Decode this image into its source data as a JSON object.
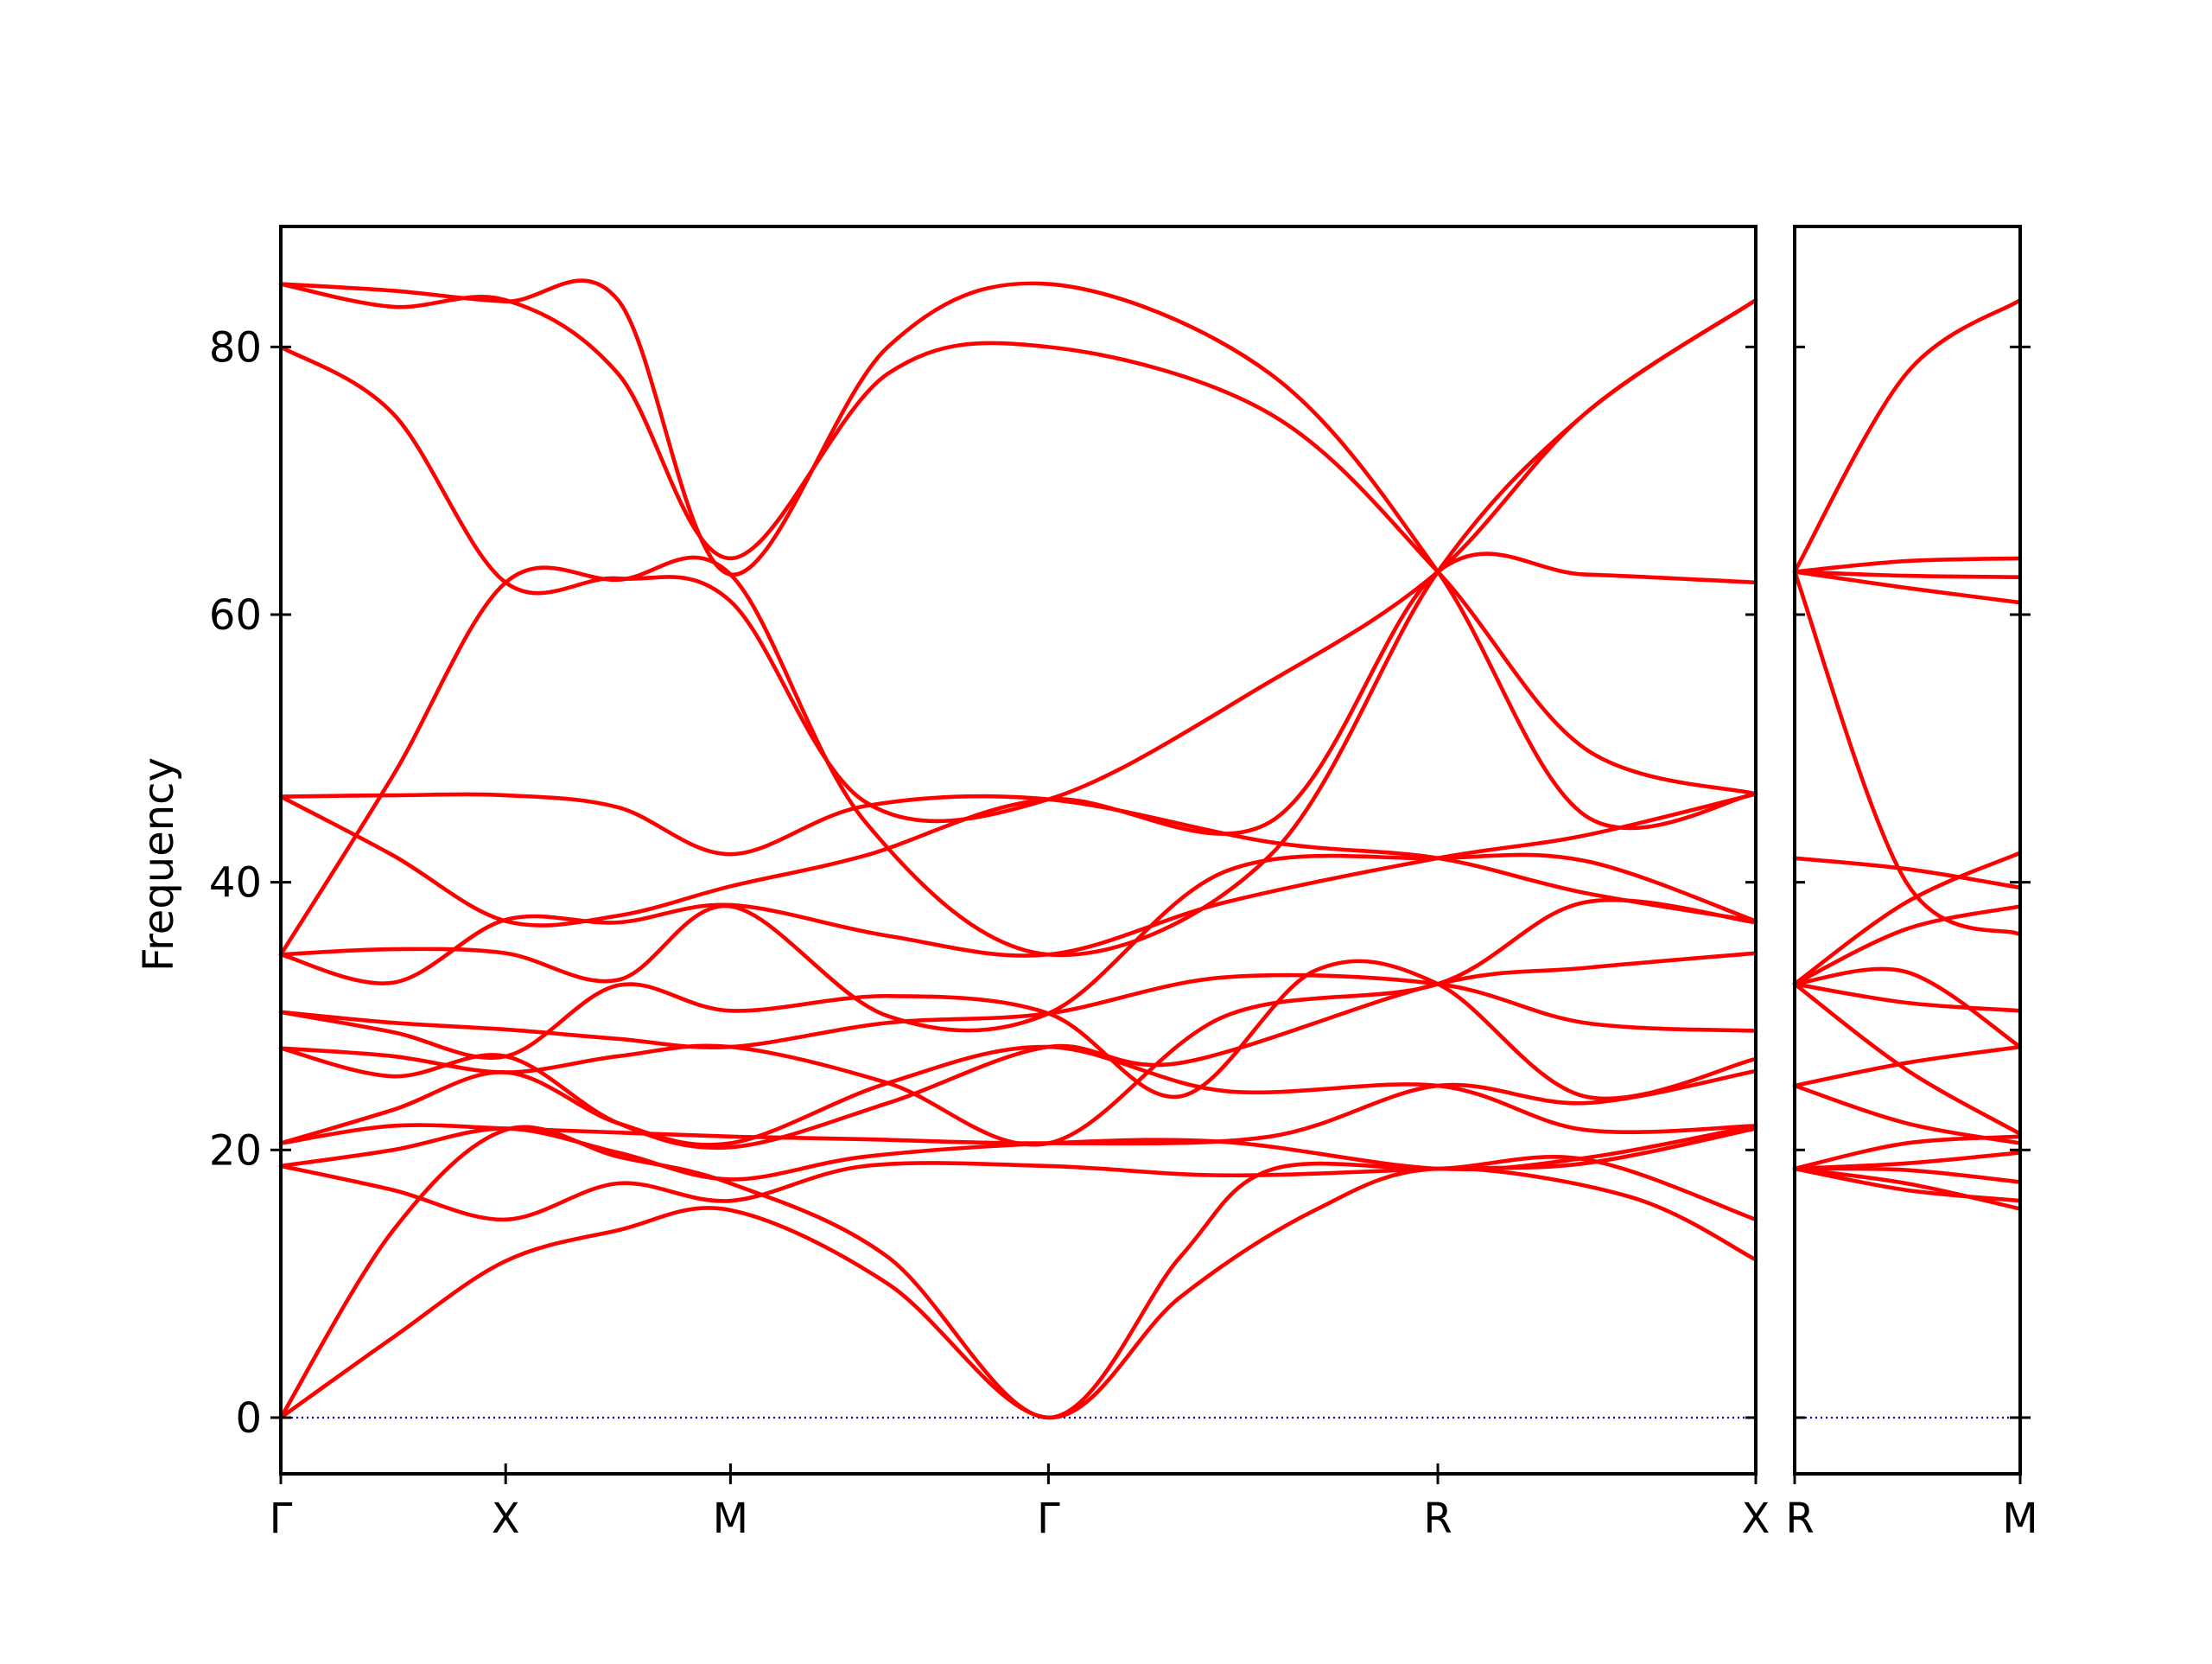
{
  "chart_data": {
    "type": "line",
    "ylabel": "Frequency",
    "ylim": [
      -4.2,
      89
    ],
    "yticks": [
      0,
      20,
      40,
      60,
      80
    ],
    "ytick_labels": [
      "0",
      "20",
      "40",
      "60",
      "80"
    ],
    "grid": false,
    "band_color": "#ff0000",
    "zero_line_color": "#0000cc",
    "zero_line_style": "dotted",
    "panels": [
      {
        "path_labels": [
          "Γ",
          "X",
          "M",
          "Γ",
          "R",
          "X"
        ],
        "path_positions": [
          0,
          0.5,
          1.0,
          1.7071,
          2.5731,
          3.2802
        ],
        "bands": [
          [
            [
              0,
              0
            ],
            [
              0.25,
              6
            ],
            [
              0.5,
              11.7
            ],
            [
              0.75,
              14
            ],
            [
              1.0,
              15.5
            ],
            [
              1.35,
              10
            ],
            [
              1.7071,
              0
            ],
            [
              2.0,
              9
            ],
            [
              2.3,
              15.5
            ],
            [
              2.5731,
              18.6
            ],
            [
              3.0,
              16.5
            ],
            [
              3.2802,
              11.8
            ]
          ],
          [
            [
              0,
              0
            ],
            [
              0.25,
              14
            ],
            [
              0.5,
              21.5
            ],
            [
              0.75,
              19.5
            ],
            [
              1.0,
              17.5
            ],
            [
              1.35,
              12
            ],
            [
              1.7071,
              0
            ],
            [
              2.0,
              12
            ],
            [
              2.2,
              18.5
            ],
            [
              2.5731,
              18.6
            ],
            [
              2.9,
              19.3
            ],
            [
              3.2802,
              14.8
            ]
          ],
          [
            [
              0,
              18.8
            ],
            [
              0.25,
              17
            ],
            [
              0.5,
              14.8
            ],
            [
              0.75,
              17.5
            ],
            [
              1.0,
              16.2
            ],
            [
              1.3,
              18.8
            ],
            [
              1.7071,
              18.8
            ],
            [
              2.1,
              18.1
            ],
            [
              2.5731,
              18.6
            ],
            [
              2.9,
              19
            ],
            [
              3.2802,
              21.6
            ]
          ],
          [
            [
              0,
              18.8
            ],
            [
              0.25,
              20
            ],
            [
              0.5,
              21.6
            ],
            [
              0.75,
              19.8
            ],
            [
              1.0,
              17.8
            ],
            [
              1.3,
              19.5
            ],
            [
              1.7071,
              20.5
            ],
            [
              2.1,
              20.6
            ],
            [
              2.5731,
              18.6
            ],
            [
              2.9,
              19.4
            ],
            [
              3.2802,
              21.8
            ]
          ],
          [
            [
              0,
              20.5
            ],
            [
              0.25,
              21.8
            ],
            [
              0.5,
              21.6
            ],
            [
              0.75,
              21.3
            ],
            [
              1.0,
              21.0
            ],
            [
              1.3,
              20.8
            ],
            [
              1.7071,
              20.5
            ],
            [
              2.2,
              21
            ],
            [
              2.5731,
              24.8
            ],
            [
              2.9,
              23.5
            ],
            [
              3.2802,
              25.9
            ]
          ],
          [
            [
              0,
              20.5
            ],
            [
              0.25,
              23
            ],
            [
              0.5,
              25.8
            ],
            [
              0.75,
              22
            ],
            [
              1.0,
              20.5
            ],
            [
              1.35,
              25
            ],
            [
              1.7071,
              27.7
            ],
            [
              2.1,
              24.4
            ],
            [
              2.5731,
              24.8
            ],
            [
              2.9,
              21.5
            ],
            [
              3.2802,
              21.8
            ]
          ],
          [
            [
              0,
              27.6
            ],
            [
              0.25,
              25.5
            ],
            [
              0.5,
              27
            ],
            [
              0.75,
              22
            ],
            [
              1.0,
              20.2
            ],
            [
              1.35,
              23.5
            ],
            [
              1.7071,
              27.7
            ],
            [
              2.0,
              26.5
            ],
            [
              2.5731,
              32.4
            ],
            [
              2.9,
              33.6
            ],
            [
              3.2802,
              34.7
            ]
          ],
          [
            [
              0,
              27.6
            ],
            [
              0.25,
              27
            ],
            [
              0.5,
              25.8
            ],
            [
              0.75,
              27
            ],
            [
              1.0,
              27.7
            ],
            [
              1.35,
              25
            ],
            [
              1.7071,
              20.5
            ],
            [
              2.1,
              30
            ],
            [
              2.5731,
              32.4
            ],
            [
              2.9,
              38.5
            ],
            [
              3.2802,
              37
            ]
          ],
          [
            [
              0,
              30.3
            ],
            [
              0.25,
              29.5
            ],
            [
              0.5,
              29
            ],
            [
              0.75,
              28.3
            ],
            [
              1.0,
              27.7
            ],
            [
              1.35,
              29.5
            ],
            [
              1.7071,
              30.2
            ],
            [
              2.1,
              32.9
            ],
            [
              2.5731,
              32.4
            ],
            [
              2.9,
              29.5
            ],
            [
              3.2802,
              28.9
            ]
          ],
          [
            [
              0,
              30.3
            ],
            [
              0.25,
              28.8
            ],
            [
              0.5,
              27
            ],
            [
              0.75,
              32.3
            ],
            [
              1.0,
              30.4
            ],
            [
              1.35,
              31.5
            ],
            [
              1.7071,
              30.2
            ],
            [
              2.0,
              24
            ],
            [
              2.3,
              33.4
            ],
            [
              2.5731,
              32.4
            ],
            [
              2.9,
              24
            ],
            [
              3.2802,
              26.8
            ]
          ],
          [
            [
              0,
              34.6
            ],
            [
              0.25,
              35
            ],
            [
              0.5,
              34.7
            ],
            [
              0.75,
              32.7
            ],
            [
              1.0,
              38.2
            ],
            [
              1.35,
              30
            ],
            [
              1.7071,
              30.2
            ],
            [
              2.1,
              40.8
            ],
            [
              2.5731,
              41.8
            ],
            [
              2.9,
              41.6
            ],
            [
              3.2802,
              37.1
            ]
          ],
          [
            [
              0,
              34.6
            ],
            [
              0.25,
              32.5
            ],
            [
              0.5,
              37.2
            ],
            [
              0.75,
              37
            ],
            [
              1.0,
              38.3
            ],
            [
              1.35,
              36
            ],
            [
              1.7071,
              34.6
            ],
            [
              2.1,
              38.5
            ],
            [
              2.5731,
              41.8
            ],
            [
              2.9,
              43.5
            ],
            [
              3.2802,
              46.6
            ]
          ],
          [
            [
              0,
              46.4
            ],
            [
              0.25,
              46.5
            ],
            [
              0.5,
              46.5
            ],
            [
              0.75,
              45.6
            ],
            [
              1.0,
              42.1
            ],
            [
              1.3,
              45.7
            ],
            [
              1.7071,
              46.2
            ],
            [
              2.2,
              43
            ],
            [
              2.5731,
              41.8
            ],
            [
              2.9,
              39.2
            ],
            [
              3.2802,
              37.1
            ]
          ],
          [
            [
              0,
              46.4
            ],
            [
              0.25,
              42
            ],
            [
              0.5,
              37.1
            ],
            [
              0.75,
              37.5
            ],
            [
              1.0,
              39.7
            ],
            [
              1.3,
              42
            ],
            [
              1.7071,
              46.2
            ],
            [
              2.2,
              44.5
            ],
            [
              2.5731,
              63.2
            ],
            [
              2.9,
              63
            ],
            [
              3.2802,
              62.4
            ]
          ],
          [
            [
              0,
              34.6
            ],
            [
              0.25,
              48
            ],
            [
              0.5,
              62.4
            ],
            [
              0.75,
              62.6
            ],
            [
              1.0,
              63
            ],
            [
              1.3,
              44.5
            ],
            [
              1.7071,
              34.6
            ],
            [
              2.2,
              42
            ],
            [
              2.5731,
              63.2
            ],
            [
              2.9,
              75
            ],
            [
              3.2802,
              83.5
            ]
          ],
          [
            [
              0,
              80
            ],
            [
              0.25,
              75
            ],
            [
              0.5,
              62.4
            ],
            [
              0.75,
              62.7
            ],
            [
              1.0,
              61
            ],
            [
              1.3,
              46
            ],
            [
              1.7071,
              46.2
            ],
            [
              2.2,
              55
            ],
            [
              2.5731,
              63.2
            ],
            [
              2.9,
              75
            ],
            [
              3.2802,
              83.5
            ]
          ],
          [
            [
              0,
              84.7
            ],
            [
              0.25,
              83
            ],
            [
              0.5,
              83.5
            ],
            [
              0.75,
              78
            ],
            [
              1.0,
              64.2
            ],
            [
              1.35,
              78
            ],
            [
              1.7071,
              80
            ],
            [
              2.2,
              75
            ],
            [
              2.5731,
              63.2
            ],
            [
              2.9,
              50
            ],
            [
              3.2802,
              46.6
            ]
          ],
          [
            [
              0,
              84.7
            ],
            [
              0.25,
              84.2
            ],
            [
              0.5,
              83.4
            ],
            [
              0.75,
              83.5
            ],
            [
              1.0,
              63
            ],
            [
              1.35,
              80
            ],
            [
              1.7071,
              84.7
            ],
            [
              2.2,
              78
            ],
            [
              2.5731,
              63.2
            ],
            [
              2.9,
              45
            ],
            [
              3.2802,
              46.6
            ]
          ]
        ]
      },
      {
        "path_labels": [
          "R",
          "M"
        ],
        "path_positions": [
          0,
          0.7071
        ],
        "bands": [
          [
            [
              0,
              18.6
            ],
            [
              0.35,
              17.5
            ],
            [
              0.7071,
              15.6
            ]
          ],
          [
            [
              0,
              18.6
            ],
            [
              0.35,
              17
            ],
            [
              0.7071,
              16.2
            ]
          ],
          [
            [
              0,
              18.6
            ],
            [
              0.35,
              18.5
            ],
            [
              0.7071,
              17.6
            ]
          ],
          [
            [
              0,
              18.6
            ],
            [
              0.35,
              19
            ],
            [
              0.7071,
              19.8
            ]
          ],
          [
            [
              0,
              18.6
            ],
            [
              0.35,
              20.5
            ],
            [
              0.7071,
              21.0
            ]
          ],
          [
            [
              0,
              24.8
            ],
            [
              0.35,
              22
            ],
            [
              0.7071,
              20.5
            ]
          ],
          [
            [
              0,
              24.8
            ],
            [
              0.35,
              26.5
            ],
            [
              0.7071,
              27.7
            ]
          ],
          [
            [
              0,
              32.4
            ],
            [
              0.35,
              26
            ],
            [
              0.7071,
              21.2
            ]
          ],
          [
            [
              0,
              32.4
            ],
            [
              0.35,
              33.3
            ],
            [
              0.7071,
              27.7
            ]
          ],
          [
            [
              0,
              32.4
            ],
            [
              0.35,
              31
            ],
            [
              0.7071,
              30.4
            ]
          ],
          [
            [
              0,
              32.4
            ],
            [
              0.35,
              36.5
            ],
            [
              0.7071,
              38.2
            ]
          ],
          [
            [
              0,
              32.4
            ],
            [
              0.35,
              38.5
            ],
            [
              0.7071,
              42.2
            ]
          ],
          [
            [
              0,
              41.8
            ],
            [
              0.35,
              41
            ],
            [
              0.7071,
              39.6
            ]
          ],
          [
            [
              0,
              63.2
            ],
            [
              0.35,
              40
            ],
            [
              0.7071,
              36.1
            ]
          ],
          [
            [
              0,
              63.2
            ],
            [
              0.35,
              62
            ],
            [
              0.7071,
              60.9
            ]
          ],
          [
            [
              0,
              63.2
            ],
            [
              0.35,
              62.9
            ],
            [
              0.7071,
              62.8
            ]
          ],
          [
            [
              0,
              63.2
            ],
            [
              0.35,
              64
            ],
            [
              0.7071,
              64.2
            ]
          ],
          [
            [
              0,
              63.2
            ],
            [
              0.35,
              78
            ],
            [
              0.7071,
              83.5
            ]
          ]
        ]
      }
    ]
  }
}
